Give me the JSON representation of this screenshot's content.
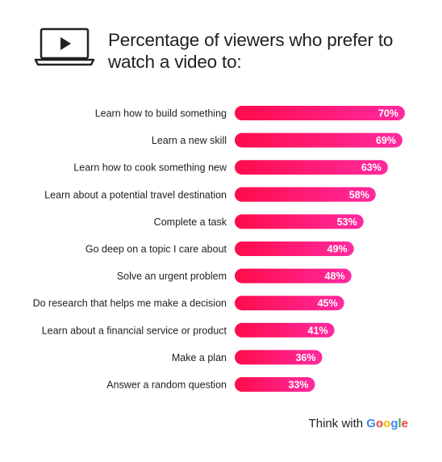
{
  "title": "Percentage of viewers who prefer to watch a video to:",
  "footer": {
    "prefix": "Think with",
    "brand": "Google"
  },
  "icon": "laptop-play-icon",
  "colors": {
    "bar_start": "#ff0c4a",
    "bar_end": "#ff2aa0",
    "text": "#202124"
  },
  "chart_data": {
    "type": "bar",
    "orientation": "horizontal",
    "title": "Percentage of viewers who prefer to watch a video to:",
    "categories": [
      "Learn how to build something",
      "Learn a new skill",
      "Learn how to cook something new",
      "Learn about a potential travel destination",
      "Complete a task",
      "Go deep on a topic I care about",
      "Solve an urgent problem",
      "Do research that helps me make a decision",
      "Learn about a financial service or product",
      "Make a plan",
      "Answer a random question"
    ],
    "values": [
      70,
      69,
      63,
      58,
      53,
      49,
      48,
      45,
      41,
      36,
      33
    ],
    "value_labels": [
      "70%",
      "69%",
      "63%",
      "58%",
      "53%",
      "49%",
      "48%",
      "45%",
      "41%",
      "36%",
      "33%"
    ],
    "unit": "%",
    "xlim": [
      0,
      70
    ],
    "grid": false,
    "legend": "none"
  }
}
